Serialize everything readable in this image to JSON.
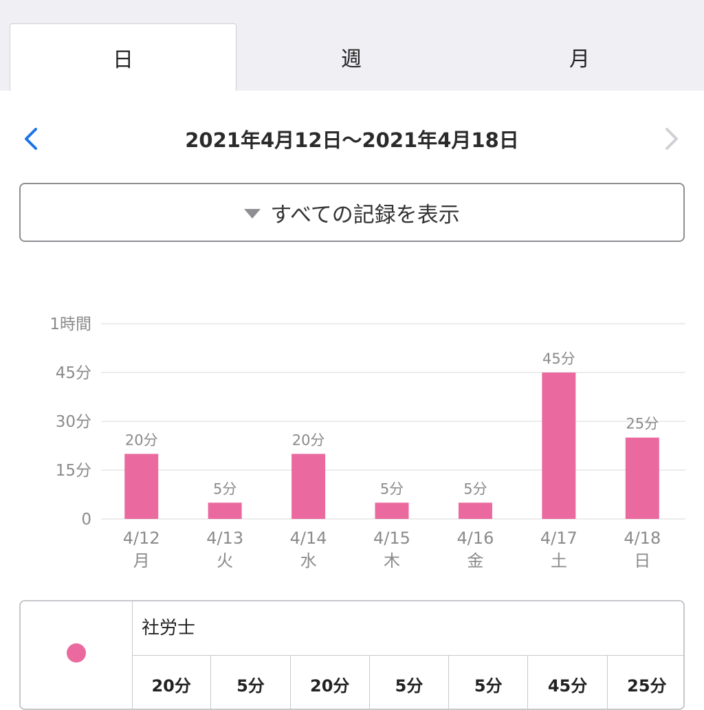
{
  "tabs": [
    {
      "label": "日",
      "active": true
    },
    {
      "label": "週",
      "active": false
    },
    {
      "label": "月",
      "active": false
    }
  ],
  "nav": {
    "title": "2021年4月12日〜2021年4月18日",
    "prev_icon": "chevron-left-icon",
    "next_icon": "chevron-right-icon",
    "prev_color": "#1a73e8",
    "next_color": "#d0d0d5"
  },
  "filter": {
    "label": "すべての記録を表示",
    "icon": "triangle-down-icon"
  },
  "chart_data": {
    "type": "bar",
    "categories": [
      "4/12",
      "4/13",
      "4/14",
      "4/15",
      "4/16",
      "4/17",
      "4/18"
    ],
    "weekdays": [
      "月",
      "火",
      "水",
      "木",
      "金",
      "土",
      "日"
    ],
    "values": [
      20,
      5,
      20,
      5,
      5,
      45,
      25
    ],
    "data_labels": [
      "20分",
      "5分",
      "20分",
      "5分",
      "5分",
      "45分",
      "25分"
    ],
    "ylim": [
      0,
      60
    ],
    "yticks": [
      0,
      15,
      30,
      45,
      60
    ],
    "ytick_labels": [
      "0",
      "15分",
      "30分",
      "45分",
      "1時間"
    ],
    "grid": true,
    "bar_color": "#ea6aa0"
  },
  "legend": {
    "name": "社労士",
    "color": "#ea6aa0",
    "values": [
      "20分",
      "5分",
      "20分",
      "5分",
      "5分",
      "45分",
      "25分"
    ]
  }
}
